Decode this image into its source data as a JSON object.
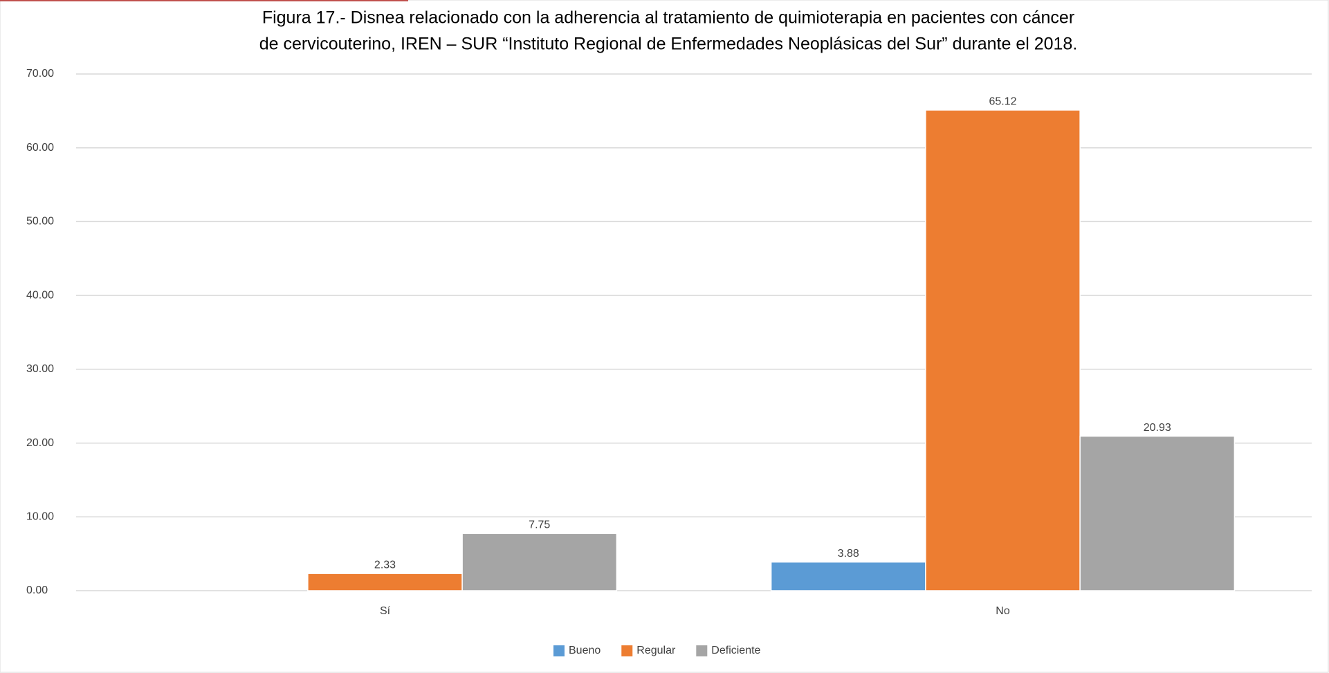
{
  "chart_data": {
    "type": "bar",
    "title": [
      "Figura 17.- Disnea relacionado con la adherencia al tratamiento de quimioterapia en pacientes con cáncer",
      "de cervicouterino, IREN – SUR “Instituto Regional de Enfermedades Neoplásicas del Sur” durante el 2018."
    ],
    "categories": [
      "Sí",
      "No"
    ],
    "series": [
      {
        "name": "Bueno",
        "color": "#5b9bd5",
        "values": [
          null,
          3.88
        ]
      },
      {
        "name": "Regular",
        "color": "#ed7d31",
        "values": [
          2.33,
          65.12
        ]
      },
      {
        "name": "Deficiente",
        "color": "#a5a5a5",
        "values": [
          7.75,
          20.93
        ]
      }
    ],
    "ylim": [
      0,
      70
    ],
    "yticks": [
      {
        "value": 0,
        "label": "0.00"
      },
      {
        "value": 10,
        "label": "10.00"
      },
      {
        "value": 20,
        "label": "20.00"
      },
      {
        "value": 30,
        "label": "30.00"
      },
      {
        "value": 40,
        "label": "40.00"
      },
      {
        "value": 50,
        "label": "50.00"
      },
      {
        "value": 60,
        "label": "60.00"
      },
      {
        "value": 70,
        "label": "70.00"
      }
    ],
    "grid": true,
    "legend": "bottom"
  }
}
